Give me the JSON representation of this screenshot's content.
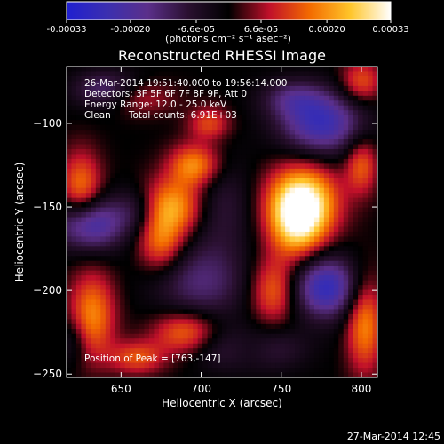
{
  "colorbar": {
    "tick_labels": [
      "-0.00033",
      "-0.00020",
      "-6.6e-05",
      "6.6e-05",
      "0.00020",
      "0.00033"
    ],
    "tick_values": [
      -0.00033,
      -0.0002,
      -6.6e-05,
      6.6e-05,
      0.0002,
      0.00033
    ],
    "range": [
      -0.00033,
      0.00033
    ],
    "unit_label": "(photons cm⁻² s⁻¹ asec⁻²)",
    "colors": [
      "#1f1fd0",
      "#3b2fb0",
      "#5b2f8a",
      "#2a1030",
      "#000000",
      "#c0102a",
      "#f36a00",
      "#ffc52a",
      "#ffffff"
    ]
  },
  "chart_data": {
    "type": "heatmap",
    "title": "Reconstructed RHESSI Image",
    "xlabel": "Heliocentric X (arcsec)",
    "ylabel": "Heliocentric Y (arcsec)",
    "xlim": [
      616,
      810
    ],
    "ylim": [
      -252,
      -66
    ],
    "xticks": [
      650,
      700,
      750,
      800
    ],
    "yticks": [
      -100,
      -150,
      -200,
      -250
    ],
    "peak": {
      "x": 763,
      "y": -147
    },
    "blobs": [
      {
        "x": 763,
        "y": -147,
        "value": 0.00033,
        "sx": 15,
        "sy": 15
      },
      {
        "x": 760,
        "y": -163,
        "value": 0.00018,
        "sx": 12,
        "sy": 14
      },
      {
        "x": 696,
        "y": -125,
        "value": 0.0002,
        "sx": 11,
        "sy": 9
      },
      {
        "x": 705,
        "y": -100,
        "value": 0.00013,
        "sx": 9,
        "sy": 7
      },
      {
        "x": 682,
        "y": -150,
        "value": 0.00022,
        "sx": 14,
        "sy": 12
      },
      {
        "x": 675,
        "y": -172,
        "value": 0.00016,
        "sx": 10,
        "sy": 12
      },
      {
        "x": 625,
        "y": -140,
        "value": 0.00018,
        "sx": 9,
        "sy": 16
      },
      {
        "x": 632,
        "y": -215,
        "value": 0.00019,
        "sx": 10,
        "sy": 18
      },
      {
        "x": 690,
        "y": -225,
        "value": 0.00017,
        "sx": 14,
        "sy": 9
      },
      {
        "x": 660,
        "y": -240,
        "value": 0.00014,
        "sx": 12,
        "sy": 7
      },
      {
        "x": 745,
        "y": -200,
        "value": 0.00016,
        "sx": 10,
        "sy": 14
      },
      {
        "x": 730,
        "y": -235,
        "value": 0.00013,
        "sx": 12,
        "sy": 8
      },
      {
        "x": 802,
        "y": -220,
        "value": 0.00019,
        "sx": 8,
        "sy": 20
      },
      {
        "x": 800,
        "y": -125,
        "value": 0.00015,
        "sx": 7,
        "sy": 12
      },
      {
        "x": 660,
        "y": -85,
        "value": 9e-05,
        "sx": 16,
        "sy": 7
      },
      {
        "x": 800,
        "y": -75,
        "value": 0.00014,
        "sx": 9,
        "sy": 9
      },
      {
        "x": 775,
        "y": -100,
        "value": -0.00025,
        "sx": 18,
        "sy": 13
      },
      {
        "x": 757,
        "y": -85,
        "value": -0.00012,
        "sx": 14,
        "sy": 8
      },
      {
        "x": 630,
        "y": -160,
        "value": -0.00026,
        "sx": 15,
        "sy": 11
      },
      {
        "x": 660,
        "y": -152,
        "value": -0.0001,
        "sx": 10,
        "sy": 10
      },
      {
        "x": 778,
        "y": -198,
        "value": -0.00027,
        "sx": 14,
        "sy": 13
      },
      {
        "x": 730,
        "y": -235,
        "value": -0.00018,
        "sx": 20,
        "sy": 9
      },
      {
        "x": 700,
        "y": -195,
        "value": -0.00014,
        "sx": 20,
        "sy": 16
      },
      {
        "x": 712,
        "y": -150,
        "value": -9e-05,
        "sx": 14,
        "sy": 20
      },
      {
        "x": 640,
        "y": -80,
        "value": -0.00015,
        "sx": 14,
        "sy": 8
      },
      {
        "x": 620,
        "y": -230,
        "value": -8e-05,
        "sx": 7,
        "sy": 10
      }
    ]
  },
  "overlay": {
    "line1": "26-Mar-2014 19:51:40.000 to 19:56:14.000",
    "line2": "Detectors: 3F 5F 6F 7F 8F 9F, Att 0",
    "line3": "Energy Range: 12.0 - 25.0 keV",
    "line4": "Clean      Total counts: 6.91E+03",
    "peak_text": "Position of Peak = [763,-147]"
  },
  "footer": {
    "timestamp": "27-Mar-2014 12:45"
  }
}
